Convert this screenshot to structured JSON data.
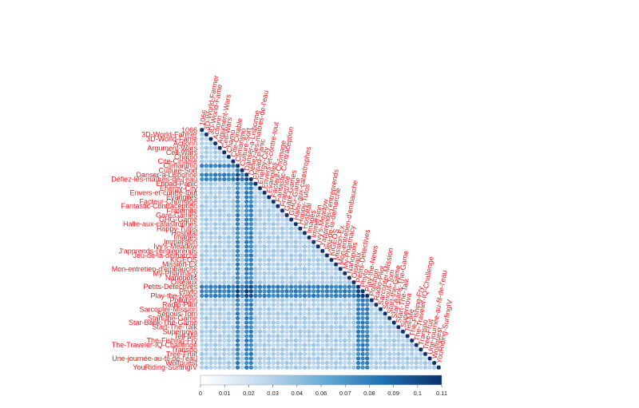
{
  "chart_data": {
    "type": "heatmap",
    "layout": "lower-triangle",
    "title": "",
    "xlabel": "",
    "ylabel": "",
    "variables": [
      "1066",
      "3D-World-Farmer",
      "3D-World-Fame",
      "Actionn",
      "Argument-Wars",
      "Cell-Wars",
      "Chamo",
      "Cite-Cinable",
      "Climanimo",
      "Culture-Sort",
      "Danser-a-Lisbonne",
      "Défiez-les-maîtres-de-l'eau",
      "Ehpad-Panic",
      "Energy-City",
      "Envers-et-contre-tout",
      "Evangiles",
      "Facteur-Chômage",
      "Fantastic-Contraception",
      "Fraternité",
      "Gare-Games",
      "GHG-Game",
      "Halte-aux-catastrophes",
      "Happy-Tutos",
      "Hospital",
      "Images",
      "Immersion",
      "Ivy's-Meadow",
      "J'apprends-j'entreprends",
      "Jeu-de-la-démarche",
      "KiGEOS",
      "Mission-Ex",
      "Mon-entretien-d'embauche",
      "My-Pharmacy",
      "Nanopolis",
      "Oiseaux",
      "Petits-Détectives",
      "Phyto",
      "Play-the-News",
      "Pollution",
      "Radio-Pilot",
      "Sarcopter-Mission",
      "Serious-Tom",
      "Start-the-Game",
      "Star-Bank-The-Game",
      "Start-The-Talk",
      "Supernova",
      "Tell-Me",
      "The-Fishing-Fry",
      "The-Traveler-IQ-Challenge",
      "Transpo",
      "Tree-Fruit",
      "Une-journée-au-fil-de-l'eau",
      "Wolfquest",
      "YouRiding-SurfingIV"
    ],
    "strong_variables": [
      "Climanimo",
      "Danser-a-Lisbonne",
      "Défiez-les-maîtres-de-l'eau",
      "Petits-Détectives",
      "Phyto",
      "Play-the-News"
    ],
    "colorbar": {
      "ticks": [
        "0",
        "0.01",
        "0.02",
        "0.03",
        "0.04",
        "0.06",
        "0.07",
        "0.08",
        "0.09",
        "0.1",
        "0.11"
      ],
      "min": 0,
      "max": 0.11,
      "position": "bottom"
    },
    "colors": {
      "low": "#ffffff",
      "mid": "#6baed6",
      "high": "#08306b",
      "label": "#e8191c",
      "diagonal": "#08306b"
    },
    "typical_value": 0.035,
    "strong_value": 0.075,
    "cell_marker": "circle"
  }
}
